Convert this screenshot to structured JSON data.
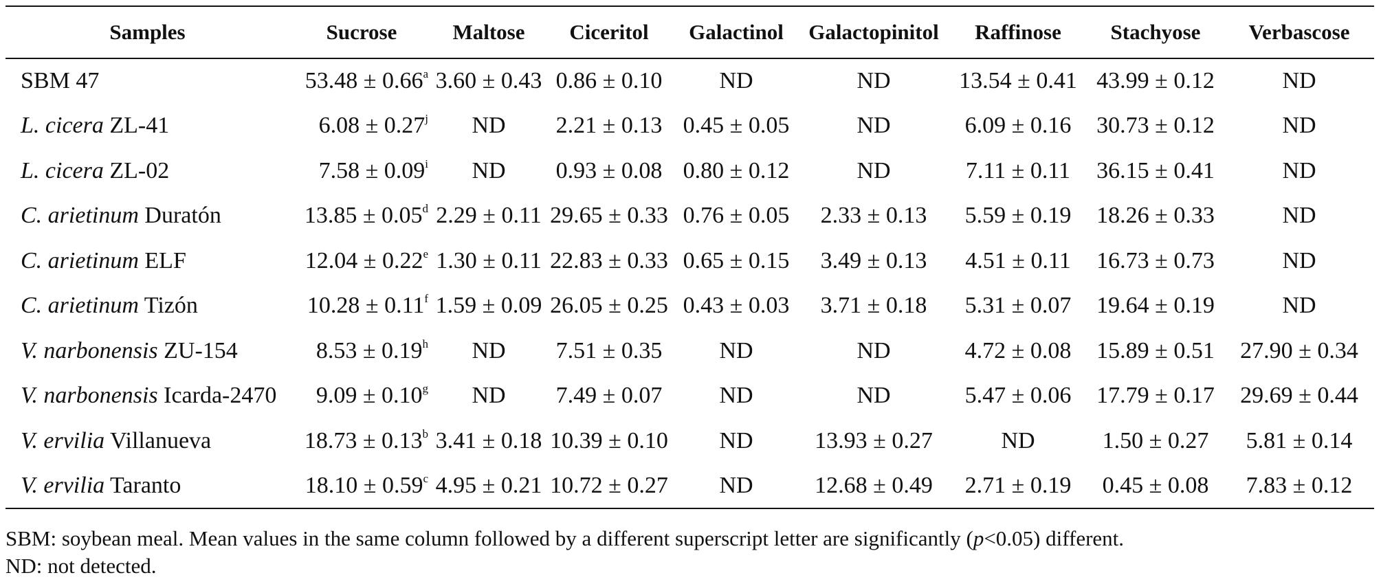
{
  "table": {
    "headers": [
      "Samples",
      "Sucrose",
      "Maltose",
      "Ciceritol",
      "Galactinol",
      "Galactopinitol",
      "Raffinose",
      "Stachyose",
      "Verbascose"
    ],
    "rows": [
      {
        "genus": "",
        "name": "SBM 47",
        "sucrose": "53.48 ± 0.66",
        "sup": "a",
        "values": [
          "3.60 ± 0.43",
          "0.86 ± 0.10",
          "ND",
          "ND",
          "13.54 ± 0.41",
          "43.99 ± 0.12",
          "ND"
        ]
      },
      {
        "genus": "L. cicera",
        "name": " ZL-41",
        "sucrose": "6.08 ± 0.27",
        "sup": "j",
        "values": [
          "ND",
          "2.21 ± 0.13",
          "0.45 ± 0.05",
          "ND",
          "6.09 ± 0.16",
          "30.73 ± 0.12",
          "ND"
        ]
      },
      {
        "genus": "L. cicera",
        "name": " ZL-02",
        "sucrose": "7.58 ± 0.09",
        "sup": "i",
        "values": [
          "ND",
          "0.93 ± 0.08",
          "0.80 ± 0.12",
          "ND",
          "7.11 ± 0.11",
          "36.15 ± 0.41",
          "ND"
        ]
      },
      {
        "genus": "C. arietinum",
        "name": " Duratón",
        "sucrose": "13.85 ± 0.05",
        "sup": "d",
        "values": [
          "2.29 ± 0.11",
          "29.65 ± 0.33",
          "0.76 ± 0.05",
          "2.33 ± 0.13",
          "5.59 ± 0.19",
          "18.26 ± 0.33",
          "ND"
        ]
      },
      {
        "genus": "C. arietinum",
        "name": " ELF",
        "sucrose": "12.04 ± 0.22",
        "sup": "e",
        "values": [
          "1.30 ± 0.11",
          "22.83 ± 0.33",
          "0.65 ± 0.15",
          "3.49 ± 0.13",
          "4.51 ± 0.11",
          "16.73 ± 0.73",
          "ND"
        ]
      },
      {
        "genus": "C. arietinum",
        "name": " Tizón",
        "sucrose": "10.28 ± 0.11",
        "sup": "f",
        "values": [
          "1.59 ± 0.09",
          "26.05 ± 0.25",
          "0.43 ± 0.03",
          "3.71 ± 0.18",
          "5.31 ± 0.07",
          "19.64 ± 0.19",
          "ND"
        ]
      },
      {
        "genus": "V. narbonensis",
        "name": " ZU-154",
        "sucrose": "8.53 ± 0.19",
        "sup": "h",
        "values": [
          "ND",
          "7.51 ± 0.35",
          "ND",
          "ND",
          "4.72 ± 0.08",
          "15.89 ± 0.51",
          "27.90 ± 0.34"
        ]
      },
      {
        "genus": "V. narbonensis",
        "name": " Icarda-2470",
        "sucrose": "9.09 ± 0.10",
        "sup": "g",
        "values": [
          "ND",
          "7.49 ± 0.07",
          "ND",
          "ND",
          "5.47 ± 0.06",
          "17.79 ± 0.17",
          "29.69 ± 0.44"
        ]
      },
      {
        "genus": "V. ervilia",
        "name": " Villanueva",
        "sucrose": "18.73 ± 0.13",
        "sup": "b",
        "values": [
          "3.41 ± 0.18",
          "10.39 ± 0.10",
          "ND",
          "13.93 ± 0.27",
          "ND",
          "1.50 ± 0.27",
          "5.81 ± 0.14"
        ]
      },
      {
        "genus": "V. ervilia",
        "name": " Taranto",
        "sucrose": "18.10 ± 0.59",
        "sup": "c",
        "values": [
          "4.95 ± 0.21",
          "10.72 ± 0.27",
          "ND",
          "12.68 ± 0.49",
          "2.71 ± 0.19",
          "0.45 ± 0.08",
          "7.83 ± 0.12"
        ]
      }
    ]
  },
  "footnote": {
    "line1_a": "SBM: soybean meal. Mean values in the same column followed by a different superscript letter are significantly (",
    "line1_p": "p",
    "line1_b": "<0.05) different.",
    "line2": "ND: not detected."
  }
}
